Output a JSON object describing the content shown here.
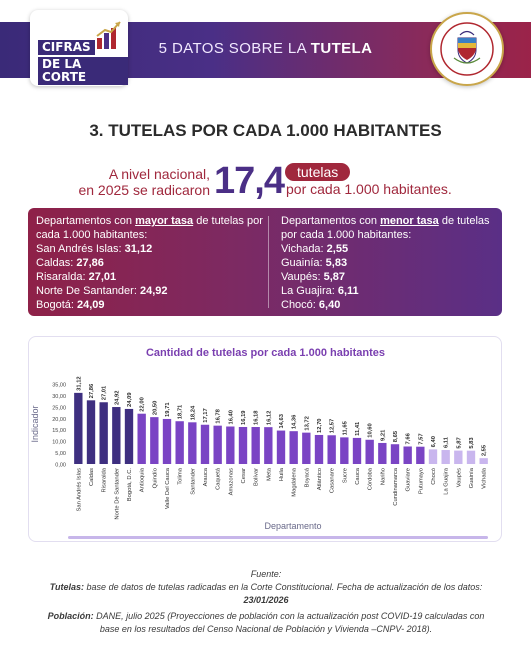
{
  "header": {
    "logo_line1": "CIFRAS",
    "logo_line2": "DE LA CORTE",
    "title_prefix": "5 DATOS SOBRE LA",
    "title_emphasis": "TUTELA",
    "seal_text": "CORTE CONSTITUCIONAL · REPÚBLICA DE COLOMBIA"
  },
  "section_title": "3. TUTELAS POR CADA 1.000 HABITANTES",
  "national": {
    "line1": "A nivel nacional,",
    "line2": "en 2025 se radicaron",
    "value": "17,4",
    "pill": "tutelas",
    "after": "por cada 1.000 habitantes."
  },
  "highest": {
    "head_prefix": "Departamentos con",
    "head_emphasis": "mayor tasa",
    "head_suffix": "de tutelas por cada 1.000 habitantes:",
    "items": [
      {
        "name": "San Andrés Islas:",
        "value": "31,12"
      },
      {
        "name": "Caldas:",
        "value": "27,86"
      },
      {
        "name": "Risaralda:",
        "value": "27,01"
      },
      {
        "name": "Norte De Santander:",
        "value": "24,92"
      },
      {
        "name": "Bogotá:",
        "value": "24,09"
      }
    ]
  },
  "lowest": {
    "head_prefix": "Departamentos con",
    "head_emphasis": "menor tasa",
    "head_suffix": "de tutelas por cada 1.000 habitantes:",
    "items": [
      {
        "name": "Vichada:",
        "value": "2,55"
      },
      {
        "name": "Guainía:",
        "value": "5,83"
      },
      {
        "name": "Vaupés:",
        "value": "5,87"
      },
      {
        "name": "La Guajira:",
        "value": "6,11"
      },
      {
        "name": "Chocó:",
        "value": "6,40"
      }
    ]
  },
  "colors": {
    "header_start": "#3a2a78",
    "header_end": "#9b2349",
    "accent_red": "#a0283d",
    "accent_purple": "#4b2f86",
    "bar_dark": "#3e2f80",
    "bar_mid": "#7a44c4",
    "bar_light": "#c9b6ee"
  },
  "chart_data": {
    "type": "bar",
    "title": "Cantidad de tutelas por cada 1.000 habitantes",
    "xlabel": "Departamento",
    "ylabel": "Indicador",
    "ylim": [
      0,
      35
    ],
    "yticks": [
      "0,00",
      "5,00",
      "10,00",
      "15,00",
      "20,00",
      "25,00",
      "30,00",
      "35,00"
    ],
    "grid": false,
    "legend": "none",
    "categories": [
      "San Andrés Islas",
      "Caldas",
      "Risaralda",
      "Norte De Santander",
      "Bogotá, D.C.",
      "Antioquia",
      "Quindío",
      "Valle Del Cauca",
      "Tolima",
      "Santander",
      "Arauca",
      "Caquetá",
      "Amazonas",
      "Cesar",
      "Bolívar",
      "Meta",
      "Huila",
      "Magdalena",
      "Boyacá",
      "Atlántico",
      "Casanare",
      "Sucre",
      "Cauca",
      "Córdoba",
      "Nariño",
      "Cundinamarca",
      "Guaviare",
      "Putumayo",
      "Chocó",
      "La Guajira",
      "Vaupés",
      "Guainía",
      "Vichada"
    ],
    "values": [
      31.12,
      27.86,
      27.01,
      24.92,
      24.09,
      22.0,
      20.5,
      19.71,
      18.71,
      18.24,
      17.17,
      16.78,
      16.4,
      16.19,
      16.18,
      16.12,
      14.63,
      14.36,
      13.72,
      12.7,
      12.57,
      11.65,
      11.41,
      10.6,
      9.21,
      8.65,
      7.66,
      7.57,
      6.4,
      6.11,
      5.87,
      5.83,
      2.55
    ],
    "value_labels": [
      "31,12",
      "27,86",
      "27,01",
      "24,92",
      "24,09",
      "22,00",
      "20,50",
      "19,71",
      "18,71",
      "18,24",
      "17,17",
      "16,78",
      "16,40",
      "16,19",
      "16,18",
      "16,12",
      "14,63",
      "14,36",
      "13,72",
      "12,70",
      "12,57",
      "11,65",
      "11,41",
      "10,60",
      "9,21",
      "8,65",
      "7,66",
      "7,57",
      "6,40",
      "6,11",
      "5,87",
      "5,83",
      "2,55"
    ]
  },
  "source": {
    "heading": "Fuente:",
    "tutelas_label": "Tutelas:",
    "tutelas_text": "base de datos de tutelas radicadas en la Corte Constitucional. Fecha de actualización de los datos:",
    "tutelas_date": "23/01/2026",
    "poblacion_label": "Población:",
    "poblacion_text": "DANE, julio 2025 (Proyecciones de población con la actualización post COVID-19 calculadas con base en los resultados del Censo Nacional de Población y Vivienda –CNPV- 2018)."
  }
}
